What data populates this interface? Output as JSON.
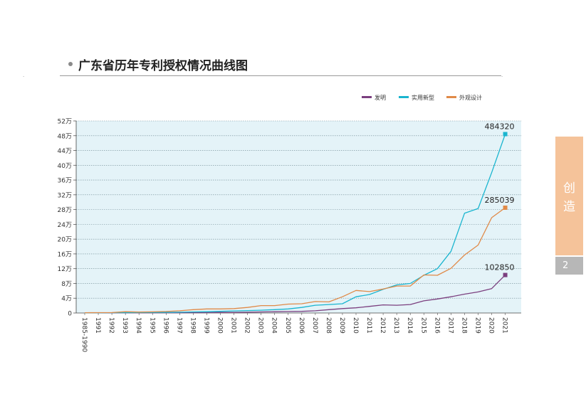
{
  "page": {
    "title": "广东省历年专利授权情况曲线图",
    "side_tab_chars": [
      "创",
      "造"
    ],
    "page_number": "2"
  },
  "colors": {
    "plot_bg": "#e4f3f8",
    "invention": "#7b3f7f",
    "utility": "#1ab5cf",
    "design": "#e08a48",
    "side_tab": "#f5c39a",
    "page_box": "#b7b7b7"
  },
  "chart_data": {
    "type": "line",
    "title": "广东省历年专利授权情况曲线图",
    "xlabel": "",
    "ylabel": "",
    "ylim": [
      0,
      520000
    ],
    "yticks": [
      0,
      40000,
      80000,
      120000,
      160000,
      200000,
      240000,
      280000,
      320000,
      360000,
      400000,
      440000,
      480000,
      520000
    ],
    "ytick_labels": [
      "0",
      "4万",
      "8万",
      "12万",
      "16万",
      "20万",
      "24万",
      "28万",
      "32万",
      "36万",
      "40万",
      "44万",
      "48万",
      "52万"
    ],
    "grid": true,
    "legend_position": "top-right",
    "categories": [
      "1985-1990",
      "1991",
      "1992",
      "1993",
      "1994",
      "1995",
      "1996",
      "1997",
      "1998",
      "1999",
      "2000",
      "2001",
      "2002",
      "2003",
      "2004",
      "2005",
      "2006",
      "2007",
      "2008",
      "2009",
      "2010",
      "2011",
      "2012",
      "2013",
      "2014",
      "2015",
      "2016",
      "2017",
      "2018",
      "2019",
      "2020",
      "2021"
    ],
    "series": [
      {
        "name": "发明",
        "color_key": "invention",
        "values": [
          200,
          300,
          400,
          500,
          500,
          600,
          700,
          800,
          1000,
          1200,
          1500,
          1800,
          2200,
          2800,
          3500,
          4000,
          4500,
          6000,
          9000,
          12000,
          14000,
          18000,
          22000,
          21000,
          23000,
          33000,
          38000,
          44000,
          51000,
          57000,
          66000,
          102850
        ],
        "end_label": "102850"
      },
      {
        "name": "实用新型",
        "color_key": "utility",
        "values": [
          300,
          500,
          800,
          1000,
          1200,
          1500,
          1800,
          2200,
          2800,
          3500,
          4500,
          5500,
          6500,
          7500,
          9000,
          11000,
          15000,
          21000,
          23000,
          25000,
          44000,
          50000,
          64000,
          76000,
          80000,
          102000,
          120000,
          167000,
          270000,
          283000,
          380000,
          484320
        ],
        "end_label": "484320"
      },
      {
        "name": "外观设计",
        "color_key": "design",
        "values": [
          800,
          1000,
          1200,
          3500,
          2500,
          3000,
          4000,
          6000,
          9000,
          11000,
          11000,
          12000,
          15000,
          20000,
          20000,
          24000,
          25000,
          31000,
          30000,
          44000,
          61000,
          58000,
          65000,
          73000,
          73000,
          103000,
          102000,
          121000,
          157000,
          184000,
          258000,
          285039
        ],
        "end_label": "285039"
      }
    ]
  }
}
